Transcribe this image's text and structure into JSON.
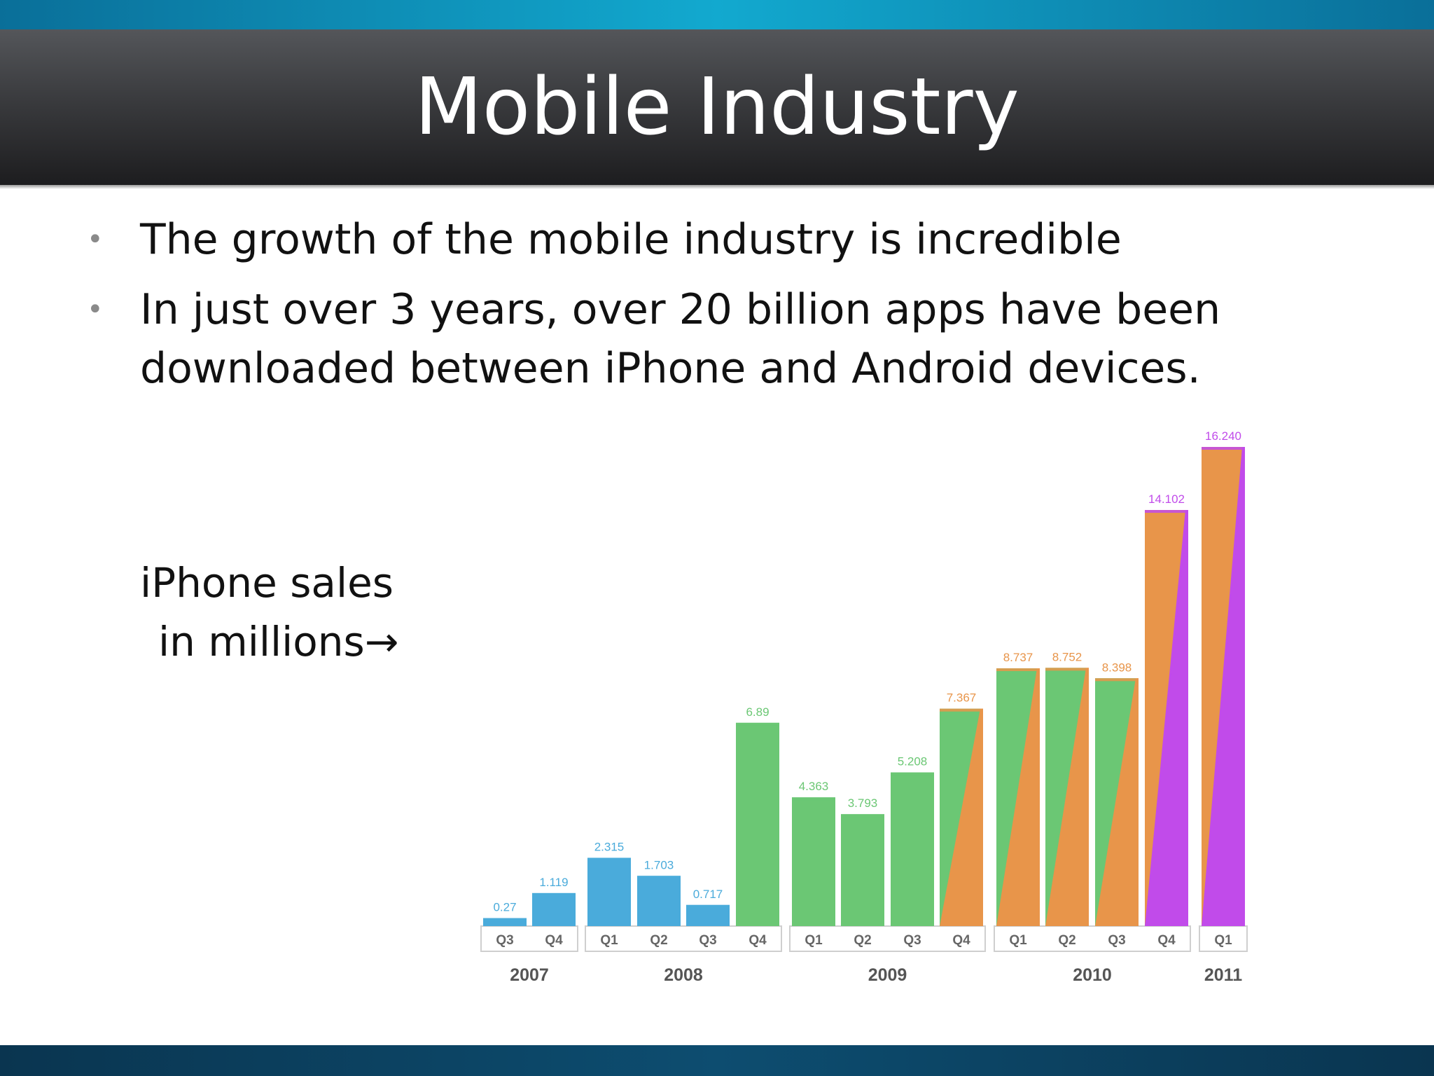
{
  "slide": {
    "title": "Mobile Industry",
    "bullets": [
      "The growth of the mobile industry is incredible",
      "In just over 3 years, over 20 billion apps have been downloaded between iPhone and Android devices."
    ],
    "side_label_line1": "iPhone sales",
    "side_label_line2": "in millions",
    "side_label_arrow": "→"
  },
  "colors": {
    "top_band": "#12a9cf",
    "title_band": "#2a2b2e",
    "bar_2007_2008": "#4aabdb",
    "bar_2009": "#6bc774",
    "bar_2010": "#e8954a",
    "bar_2011": "#c14bea"
  },
  "chart_data": {
    "type": "bar",
    "title": "",
    "xlabel": "",
    "ylabel": "",
    "ylim": [
      0,
      16.24
    ],
    "grid": false,
    "legend": "none",
    "categories": [
      "Q3",
      "Q4",
      "Q1",
      "Q2",
      "Q3",
      "Q4",
      "Q1",
      "Q2",
      "Q3",
      "Q4",
      "Q1",
      "Q2",
      "Q3",
      "Q4",
      "Q1"
    ],
    "years": [
      "2007",
      "2007",
      "2008",
      "2008",
      "2008",
      "2008",
      "2009",
      "2009",
      "2009",
      "2009",
      "2010",
      "2010",
      "2010",
      "2010",
      "2011"
    ],
    "year_groups": [
      {
        "label": "2007",
        "count": 2
      },
      {
        "label": "2008",
        "count": 4
      },
      {
        "label": "2009",
        "count": 4
      },
      {
        "label": "2010",
        "count": 4
      },
      {
        "label": "2011",
        "count": 1
      }
    ],
    "values": [
      0.27,
      1.119,
      2.315,
      1.703,
      0.717,
      6.89,
      4.363,
      3.793,
      5.208,
      7.367,
      8.737,
      8.752,
      8.398,
      14.102,
      16.24
    ],
    "value_labels": [
      "0.27",
      "1.119",
      "2.315",
      "1.703",
      "0.717",
      "6.89",
      "4.363",
      "3.793",
      "5.208",
      "7.367",
      "8.737",
      "8.752",
      "8.398",
      "14.102",
      "16.240"
    ],
    "bar_colors": [
      "#4aabdb",
      "#4aabdb",
      "#4aabdb",
      "#4aabdb",
      "#4aabdb",
      "#6bc774",
      "#6bc774",
      "#6bc774",
      "#6bc774",
      "#e8954a",
      "#e8954a",
      "#e8954a",
      "#e8954a",
      "#c14bea",
      "#c14bea"
    ],
    "secondary_colors": [
      null,
      null,
      null,
      null,
      null,
      null,
      null,
      null,
      null,
      "#6bc774",
      "#6bc774",
      "#6bc774",
      "#6bc774",
      "#e8954a",
      "#e8954a"
    ],
    "label_colors": [
      "#4aabdb",
      "#4aabdb",
      "#4aabdb",
      "#4aabdb",
      "#4aabdb",
      "#6bc774",
      "#6bc774",
      "#6bc774",
      "#6bc774",
      "#e8954a",
      "#e8954a",
      "#e8954a",
      "#e8954a",
      "#c14bea",
      "#c14bea"
    ]
  }
}
